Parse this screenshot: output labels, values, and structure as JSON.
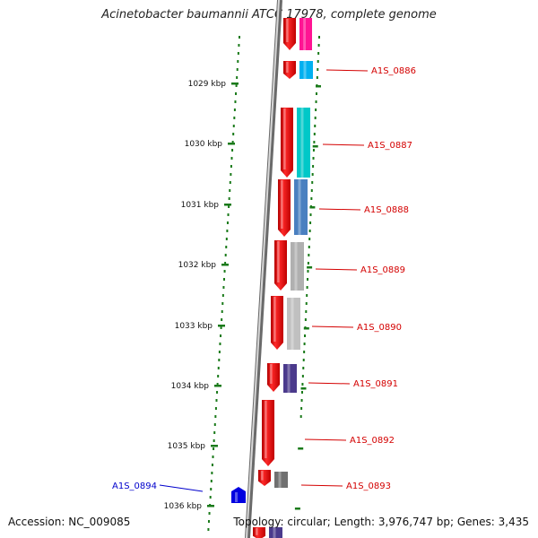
{
  "title": "Acinetobacter baumannii ATCC 17978, complete genome",
  "footer": {
    "accession": "Accession: NC_009085",
    "summary": "Topology: circular; Length: 3,976,747 bp; Genes: 3,435"
  },
  "ticks": [
    {
      "label": "1029 kbp"
    },
    {
      "label": "1030 kbp"
    },
    {
      "label": "1031 kbp"
    },
    {
      "label": "1032 kbp"
    },
    {
      "label": "1033 kbp"
    },
    {
      "label": "1034 kbp"
    },
    {
      "label": "1035 kbp"
    },
    {
      "label": "1036 kbp"
    }
  ],
  "genes": [
    {
      "id": "A1S_0886",
      "strand": "forward",
      "color": "#e00000",
      "partner_color": "#00b0f0"
    },
    {
      "id": "A1S_0887",
      "strand": "forward",
      "color": "#e00000",
      "partner_color": "#00c8c8"
    },
    {
      "id": "A1S_0888",
      "strand": "forward",
      "color": "#e00000",
      "partner_color": "#4a80c0"
    },
    {
      "id": "A1S_0889",
      "strand": "forward",
      "color": "#e00000",
      "partner_color": "#b0b0b0"
    },
    {
      "id": "A1S_0890",
      "strand": "forward",
      "color": "#e00000",
      "partner_color": "#c0c0c0"
    },
    {
      "id": "A1S_0891",
      "strand": "forward",
      "color": "#e00000",
      "partner_color": "#4b3a8c"
    },
    {
      "id": "A1S_0892",
      "strand": "forward",
      "color": "#e00000",
      "partner_color": null
    },
    {
      "id": "A1S_0893",
      "strand": "forward",
      "color": "#e00000",
      "partner_color": "#707070"
    },
    {
      "id": "A1S_0894",
      "strand": "reverse",
      "color": "#0000e0",
      "partner_color": null
    }
  ],
  "colors": {
    "forward_label": "#d40000",
    "reverse_label": "#0000cc",
    "tick": "#1a7a1a",
    "backbone": "#999999",
    "top_partner": "#ff1493"
  }
}
